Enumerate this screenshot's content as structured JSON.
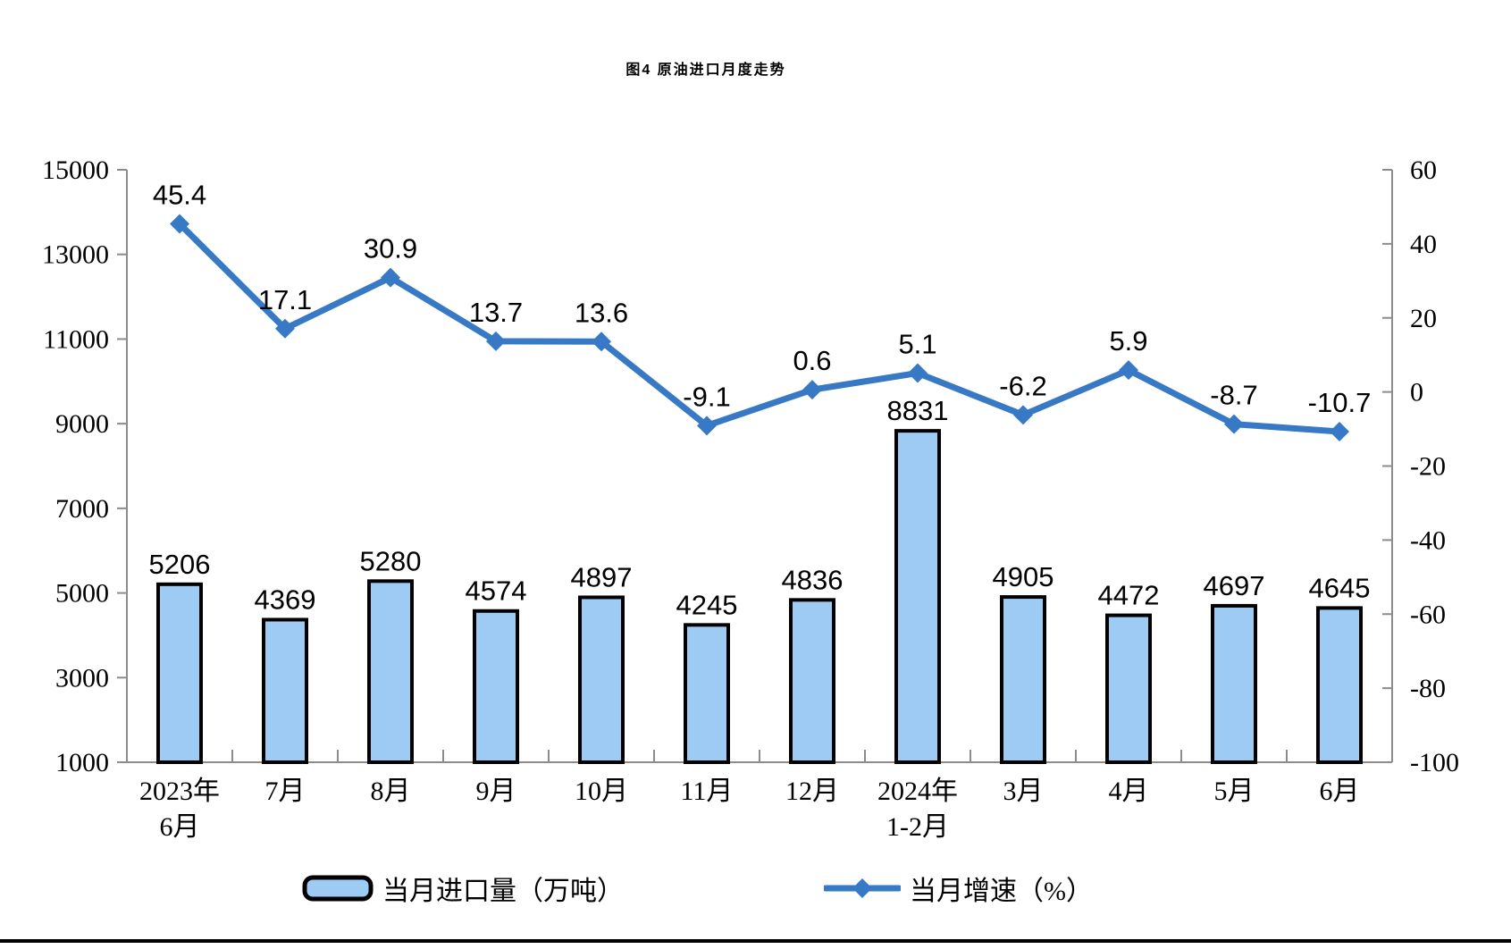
{
  "title": "图4 原油进口月度走势",
  "colors": {
    "bar_fill": "#9DCBF4",
    "bar_stroke": "#000000",
    "line_color": "#3879C6",
    "axis_color": "#8C8C8C",
    "text_color": "#000000",
    "bottom_rule": "#000000"
  },
  "chart_data": {
    "type": "bar+line",
    "title": "图4 原油进口月度走势",
    "categories": [
      {
        "lines": [
          "2023年",
          "6月"
        ]
      },
      {
        "lines": [
          "7月"
        ]
      },
      {
        "lines": [
          "8月"
        ]
      },
      {
        "lines": [
          "9月"
        ]
      },
      {
        "lines": [
          "10月"
        ]
      },
      {
        "lines": [
          "11月"
        ]
      },
      {
        "lines": [
          "12月"
        ]
      },
      {
        "lines": [
          "2024年",
          "1-2月"
        ]
      },
      {
        "lines": [
          "3月"
        ]
      },
      {
        "lines": [
          "4月"
        ]
      },
      {
        "lines": [
          "5月"
        ]
      },
      {
        "lines": [
          "6月"
        ]
      }
    ],
    "series": [
      {
        "name": "当月进口量（万吨）",
        "type": "bar",
        "axis": "left",
        "values": [
          5206,
          4369,
          5280,
          4574,
          4897,
          4245,
          4836,
          8831,
          4905,
          4472,
          4697,
          4645
        ]
      },
      {
        "name": "当月增速（%）",
        "type": "line",
        "axis": "right",
        "values": [
          45.4,
          17.1,
          30.9,
          13.7,
          13.6,
          -9.1,
          0.6,
          5.1,
          -6.2,
          5.9,
          -8.7,
          -10.7
        ]
      }
    ],
    "left_axis": {
      "min": 1000,
      "max": 15000,
      "step": 2000,
      "ticks": [
        15000,
        13000,
        11000,
        9000,
        7000,
        5000,
        3000,
        1000
      ]
    },
    "right_axis": {
      "min": -100,
      "max": 60,
      "step": 20,
      "ticks": [
        60,
        40,
        20,
        0,
        -20,
        -40,
        -60,
        -80,
        -100
      ]
    },
    "grid": false,
    "legend_position": "bottom",
    "data_labels": true
  }
}
